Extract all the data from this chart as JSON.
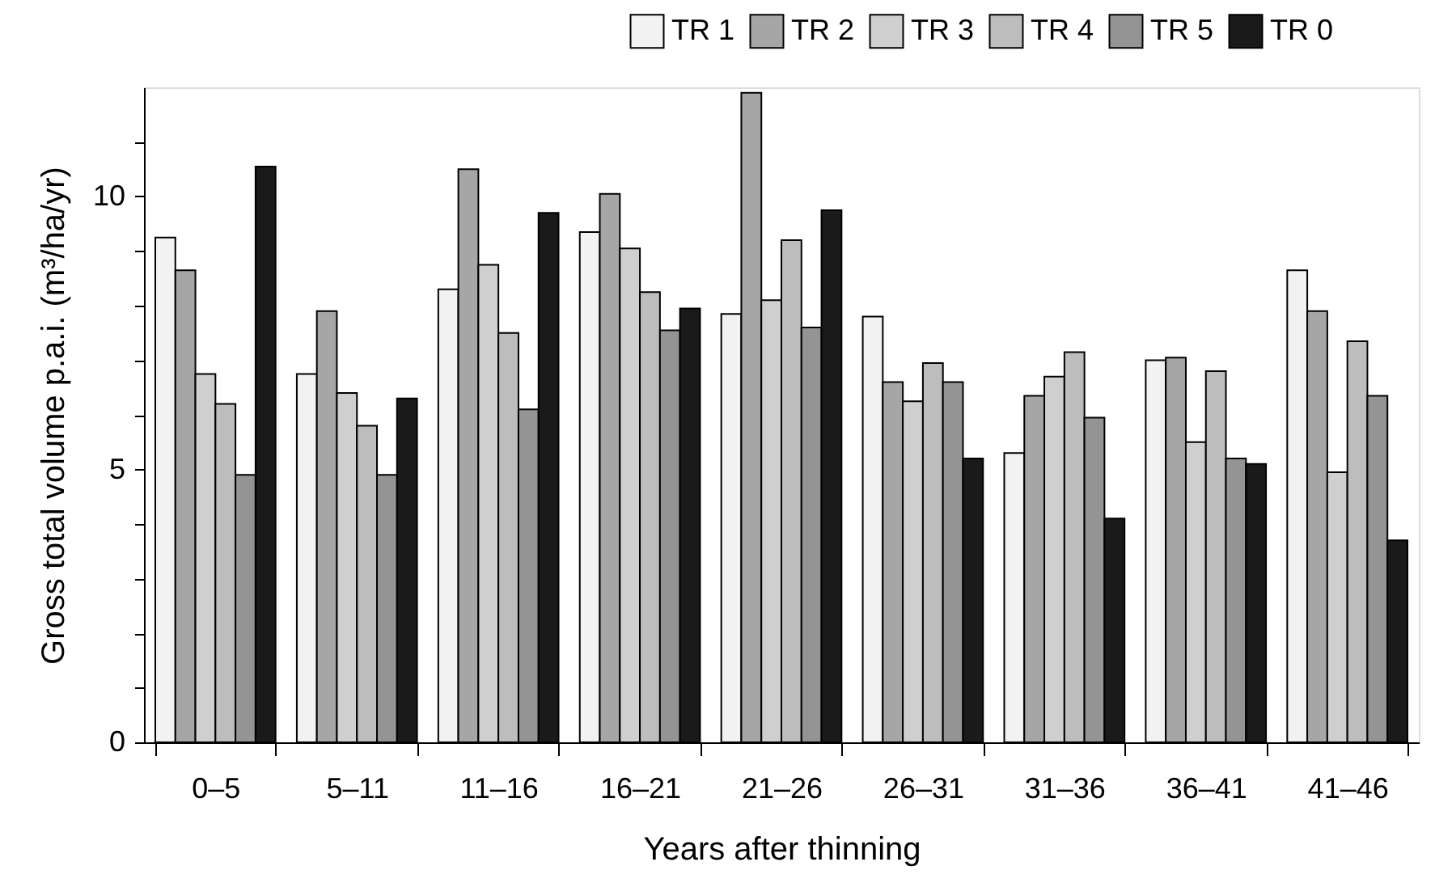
{
  "chart_data": {
    "type": "bar",
    "xlabel": "Years after thinning",
    "ylabel": "Gross total volume p.a.i. (m³/ha/yr)",
    "categories": [
      "0–5",
      "5–11",
      "11–16",
      "16–21",
      "21–26",
      "26–31",
      "31–36",
      "36–41",
      "41–46"
    ],
    "ylim": [
      0,
      12
    ],
    "yticks": [
      0,
      {
        "value": 1,
        "label": null
      },
      {
        "value": 2,
        "label": null
      },
      {
        "value": 3,
        "label": null
      },
      {
        "value": 4,
        "label": null
      },
      5,
      {
        "value": 6,
        "label": null
      },
      {
        "value": 7,
        "label": null
      },
      {
        "value": 8,
        "label": null
      },
      {
        "value": 9,
        "label": null
      },
      10,
      {
        "value": 11,
        "label": null
      }
    ],
    "grid": false,
    "legend": "top right",
    "series": [
      {
        "name": "TR 1",
        "color": "#f2f2f2",
        "values": [
          9.25,
          6.75,
          8.3,
          9.35,
          7.85,
          7.8,
          5.3,
          7.0,
          8.65
        ]
      },
      {
        "name": "TR 2",
        "color": "#a6a6a6",
        "values": [
          8.65,
          7.9,
          10.5,
          10.05,
          11.9,
          6.6,
          6.35,
          7.05,
          7.9
        ]
      },
      {
        "name": "TR 3",
        "color": "#cfcfcf",
        "values": [
          6.75,
          6.4,
          8.75,
          9.05,
          8.1,
          6.25,
          6.7,
          5.5,
          4.95
        ]
      },
      {
        "name": "TR 4",
        "color": "#bdbdbd",
        "values": [
          6.2,
          5.8,
          7.5,
          8.25,
          9.2,
          6.95,
          7.15,
          6.8,
          7.35
        ]
      },
      {
        "name": "TR 5",
        "color": "#949494",
        "values": [
          4.9,
          4.9,
          6.1,
          7.55,
          7.6,
          6.6,
          5.95,
          5.2,
          6.35
        ]
      },
      {
        "name": "TR 0",
        "color": "#1a1a1a",
        "values": [
          10.55,
          6.3,
          9.7,
          7.95,
          9.75,
          5.2,
          4.1,
          5.1,
          3.7
        ]
      }
    ]
  }
}
